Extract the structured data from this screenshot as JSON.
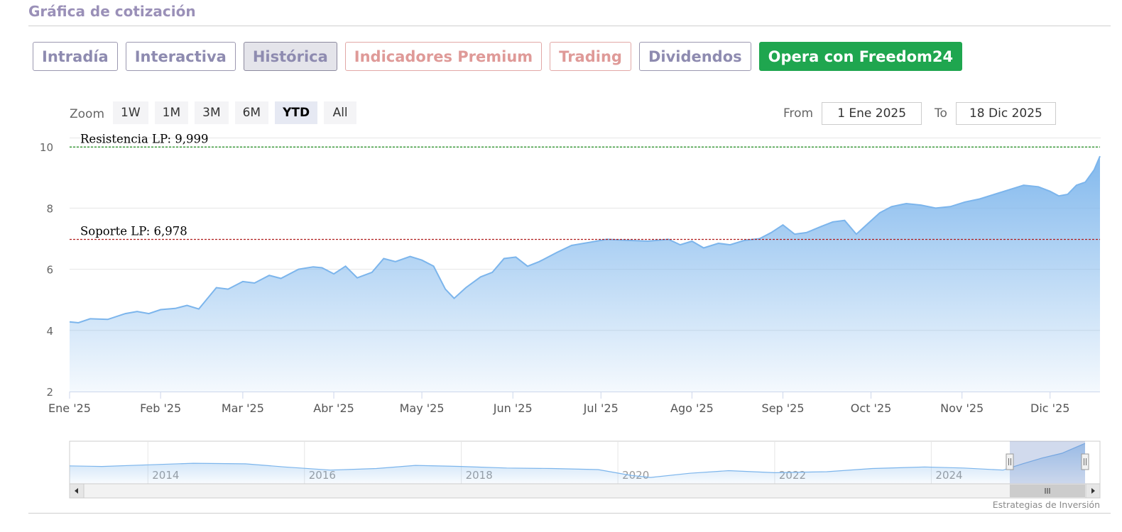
{
  "section": {
    "title": "Gráfica de cotización"
  },
  "tabs": [
    {
      "key": "intraday",
      "label": "Intradía",
      "kind": "normal"
    },
    {
      "key": "interactive",
      "label": "Interactiva",
      "kind": "normal"
    },
    {
      "key": "historical",
      "label": "Histórica",
      "kind": "active"
    },
    {
      "key": "premium",
      "label": "Indicadores Premium",
      "kind": "premium"
    },
    {
      "key": "trading",
      "label": "Trading",
      "kind": "premium"
    },
    {
      "key": "dividends",
      "label": "Dividendos",
      "kind": "normal"
    },
    {
      "key": "cta",
      "label": "Opera con Freedom24",
      "kind": "cta"
    }
  ],
  "zoom": {
    "label": "Zoom",
    "buttons": [
      "1W",
      "1M",
      "3M",
      "6M",
      "YTD",
      "All"
    ],
    "active": "YTD"
  },
  "range": {
    "from_label": "From",
    "from_value": "1 Ene 2025",
    "to_label": "To",
    "to_value": "18 Dic 2025"
  },
  "colors": {
    "line": "#7cb5ec",
    "resistance": "#1a8a1a",
    "support": "#b01c1c",
    "cta": "#1fa64f",
    "tab_text": "#8e8bb0",
    "premium_text": "#df9a98"
  },
  "credits": "Estrategias de Inversión",
  "chart_data": {
    "type": "area",
    "title": "",
    "xlabel": "",
    "ylabel": "",
    "ylim": [
      2,
      10.4
    ],
    "y_ticks": [
      2,
      4,
      6,
      8,
      10
    ],
    "x_tick_labels": [
      "Ene '25",
      "Feb '25",
      "Mar '25",
      "Abr '25",
      "May '25",
      "Jun '25",
      "Jul '25",
      "Ago '25",
      "Sep '25",
      "Oct '25",
      "Nov '25",
      "Dic '25"
    ],
    "x_tick_dates": [
      "2025-01-01",
      "2025-02-01",
      "2025-03-01",
      "2025-04-01",
      "2025-05-01",
      "2025-06-01",
      "2025-07-01",
      "2025-08-01",
      "2025-09-01",
      "2025-10-01",
      "2025-11-01",
      "2025-12-01"
    ],
    "x_range": [
      "2025-01-01",
      "2025-12-18"
    ],
    "grid": true,
    "legend": "none",
    "series": [
      {
        "values": [
          [
            "2025-01-01",
            4.28
          ],
          [
            "2025-01-04",
            4.25
          ],
          [
            "2025-01-08",
            4.38
          ],
          [
            "2025-01-14",
            4.36
          ],
          [
            "2025-01-20",
            4.55
          ],
          [
            "2025-01-24",
            4.62
          ],
          [
            "2025-01-28",
            4.55
          ],
          [
            "2025-02-01",
            4.68
          ],
          [
            "2025-02-06",
            4.72
          ],
          [
            "2025-02-10",
            4.82
          ],
          [
            "2025-02-14",
            4.7
          ],
          [
            "2025-02-20",
            5.4
          ],
          [
            "2025-02-24",
            5.35
          ],
          [
            "2025-03-01",
            5.6
          ],
          [
            "2025-03-05",
            5.55
          ],
          [
            "2025-03-10",
            5.8
          ],
          [
            "2025-03-14",
            5.7
          ],
          [
            "2025-03-20",
            6.0
          ],
          [
            "2025-03-25",
            6.08
          ],
          [
            "2025-03-28",
            6.05
          ],
          [
            "2025-04-01",
            5.85
          ],
          [
            "2025-04-05",
            6.1
          ],
          [
            "2025-04-09",
            5.72
          ],
          [
            "2025-04-14",
            5.9
          ],
          [
            "2025-04-18",
            6.35
          ],
          [
            "2025-04-22",
            6.25
          ],
          [
            "2025-04-27",
            6.42
          ],
          [
            "2025-05-01",
            6.3
          ],
          [
            "2025-05-05",
            6.1
          ],
          [
            "2025-05-09",
            5.35
          ],
          [
            "2025-05-12",
            5.05
          ],
          [
            "2025-05-16",
            5.4
          ],
          [
            "2025-05-21",
            5.75
          ],
          [
            "2025-05-25",
            5.9
          ],
          [
            "2025-05-29",
            6.35
          ],
          [
            "2025-06-02",
            6.4
          ],
          [
            "2025-06-06",
            6.1
          ],
          [
            "2025-06-10",
            6.25
          ],
          [
            "2025-06-16",
            6.55
          ],
          [
            "2025-06-21",
            6.78
          ],
          [
            "2025-06-27",
            6.88
          ],
          [
            "2025-07-03",
            6.98
          ],
          [
            "2025-07-10",
            6.95
          ],
          [
            "2025-07-17",
            6.92
          ],
          [
            "2025-07-24",
            6.98
          ],
          [
            "2025-07-28",
            6.8
          ],
          [
            "2025-08-01",
            6.92
          ],
          [
            "2025-08-05",
            6.7
          ],
          [
            "2025-08-10",
            6.85
          ],
          [
            "2025-08-14",
            6.8
          ],
          [
            "2025-08-19",
            6.95
          ],
          [
            "2025-08-24",
            7.0
          ],
          [
            "2025-08-28",
            7.2
          ],
          [
            "2025-09-01",
            7.45
          ],
          [
            "2025-09-05",
            7.15
          ],
          [
            "2025-09-09",
            7.2
          ],
          [
            "2025-09-14",
            7.4
          ],
          [
            "2025-09-18",
            7.55
          ],
          [
            "2025-09-22",
            7.6
          ],
          [
            "2025-09-26",
            7.15
          ],
          [
            "2025-09-30",
            7.5
          ],
          [
            "2025-10-04",
            7.85
          ],
          [
            "2025-10-08",
            8.05
          ],
          [
            "2025-10-13",
            8.15
          ],
          [
            "2025-10-18",
            8.1
          ],
          [
            "2025-10-23",
            8.0
          ],
          [
            "2025-10-28",
            8.05
          ],
          [
            "2025-11-02",
            8.2
          ],
          [
            "2025-11-07",
            8.3
          ],
          [
            "2025-11-12",
            8.45
          ],
          [
            "2025-11-17",
            8.6
          ],
          [
            "2025-11-22",
            8.75
          ],
          [
            "2025-11-27",
            8.7
          ],
          [
            "2025-12-01",
            8.55
          ],
          [
            "2025-12-04",
            8.4
          ],
          [
            "2025-12-07",
            8.45
          ],
          [
            "2025-12-10",
            8.75
          ],
          [
            "2025-12-13",
            8.85
          ],
          [
            "2025-12-16",
            9.25
          ],
          [
            "2025-12-18",
            9.7
          ]
        ]
      }
    ],
    "annotations": [
      {
        "label": "Resistencia LP: 9,999",
        "value": 9.999
      },
      {
        "label": "Soporte LP: 6,978",
        "value": 6.978
      }
    ],
    "navigator": {
      "x_tick_labels": [
        "2014",
        "2016",
        "2018",
        "2020",
        "2022",
        "2024"
      ],
      "x_range": [
        "2013-01-01",
        "2025-12-18"
      ],
      "selection": [
        "2025-01-01",
        "2025-12-18"
      ],
      "values": [
        [
          "2013-01-01",
          5.4
        ],
        [
          "2013-06-01",
          5.3
        ],
        [
          "2014-01-01",
          5.6
        ],
        [
          "2014-08-01",
          5.9
        ],
        [
          "2015-04-01",
          5.8
        ],
        [
          "2015-10-01",
          5.2
        ],
        [
          "2016-05-01",
          4.6
        ],
        [
          "2016-12-01",
          4.9
        ],
        [
          "2017-06-01",
          5.5
        ],
        [
          "2018-01-01",
          5.3
        ],
        [
          "2018-08-01",
          5.0
        ],
        [
          "2019-03-01",
          4.9
        ],
        [
          "2019-10-01",
          4.7
        ],
        [
          "2020-03-01",
          3.6
        ],
        [
          "2020-06-01",
          3.2
        ],
        [
          "2020-12-01",
          4.0
        ],
        [
          "2021-06-01",
          4.5
        ],
        [
          "2022-01-01",
          4.1
        ],
        [
          "2022-09-01",
          4.3
        ],
        [
          "2023-04-01",
          4.9
        ],
        [
          "2023-12-01",
          5.2
        ],
        [
          "2024-06-01",
          5.0
        ],
        [
          "2024-12-01",
          4.6
        ],
        [
          "2025-03-01",
          5.8
        ],
        [
          "2025-06-01",
          6.9
        ],
        [
          "2025-09-01",
          7.8
        ],
        [
          "2025-12-18",
          9.7
        ]
      ]
    }
  }
}
